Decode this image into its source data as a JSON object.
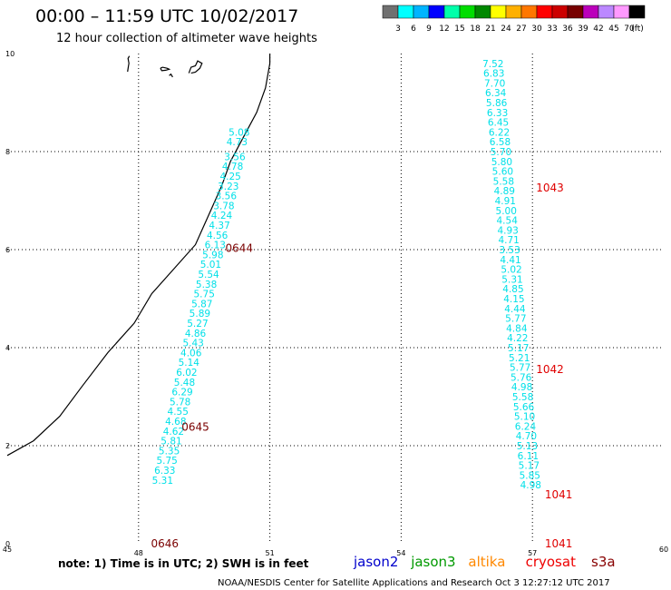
{
  "header": {
    "title": "00:00 – 11:59 UTC 10/02/2017",
    "subtitle": "12 hour collection of altimeter wave heights"
  },
  "colorbar": {
    "colors": [
      "#707070",
      "#00ffff",
      "#00b4ff",
      "#0000ff",
      "#00ffaa",
      "#00dd00",
      "#008800",
      "#ffff00",
      "#ffb000",
      "#ff7700",
      "#ff0000",
      "#cc0000",
      "#770000",
      "#bb00bb",
      "#bb88ff",
      "#ff99ff",
      "#000000"
    ],
    "labels": [
      "3",
      "6",
      "9",
      "12",
      "15",
      "18",
      "21",
      "24",
      "27",
      "30",
      "33",
      "36",
      "39",
      "42",
      "45",
      "70",
      "(ft)"
    ]
  },
  "chart_data": {
    "type": "scatter",
    "x_ticks": [
      "45",
      "48",
      "51",
      "54",
      "57",
      "60"
    ],
    "y_ticks": [
      "0",
      "2",
      "4",
      "6",
      "8",
      "10"
    ],
    "xlim": [
      45,
      60
    ],
    "ylim": [
      0,
      10
    ],
    "grid": true,
    "tracks": [
      {
        "name": "western track",
        "points": [
          {
            "x": 50.3,
            "y": 8.4,
            "v": "5.08"
          },
          {
            "x": 50.25,
            "y": 8.2,
            "v": "4.73"
          },
          {
            "x": 50.2,
            "y": 7.9,
            "v": "3.56"
          },
          {
            "x": 50.15,
            "y": 7.7,
            "v": "4.78"
          },
          {
            "x": 50.1,
            "y": 7.5,
            "v": "4.25"
          },
          {
            "x": 50.05,
            "y": 7.3,
            "v": "3.23"
          },
          {
            "x": 50.0,
            "y": 7.1,
            "v": "3.56"
          },
          {
            "x": 49.95,
            "y": 6.9,
            "v": "3.78"
          },
          {
            "x": 49.9,
            "y": 6.7,
            "v": "4.24"
          },
          {
            "x": 49.85,
            "y": 6.5,
            "v": "4.37"
          },
          {
            "x": 49.8,
            "y": 6.3,
            "v": "4.56"
          },
          {
            "x": 49.75,
            "y": 6.1,
            "v": "6.13"
          },
          {
            "x": 49.7,
            "y": 5.9,
            "v": "5.98"
          },
          {
            "x": 49.65,
            "y": 5.7,
            "v": "5.01"
          },
          {
            "x": 49.6,
            "y": 5.5,
            "v": "5.54"
          },
          {
            "x": 49.55,
            "y": 5.3,
            "v": "5.38"
          },
          {
            "x": 49.5,
            "y": 5.1,
            "v": "5.75"
          },
          {
            "x": 49.45,
            "y": 4.9,
            "v": "5.87"
          },
          {
            "x": 49.4,
            "y": 4.7,
            "v": "5.89"
          },
          {
            "x": 49.35,
            "y": 4.5,
            "v": "5.27"
          },
          {
            "x": 49.3,
            "y": 4.3,
            "v": "4.86"
          },
          {
            "x": 49.25,
            "y": 4.1,
            "v": "5.43"
          },
          {
            "x": 49.2,
            "y": 3.9,
            "v": "4.06"
          },
          {
            "x": 49.15,
            "y": 3.7,
            "v": "5.14"
          },
          {
            "x": 49.1,
            "y": 3.5,
            "v": "6.02"
          },
          {
            "x": 49.05,
            "y": 3.3,
            "v": "5.48"
          },
          {
            "x": 49.0,
            "y": 3.1,
            "v": "6.29"
          },
          {
            "x": 48.95,
            "y": 2.9,
            "v": "5.78"
          },
          {
            "x": 48.9,
            "y": 2.7,
            "v": "4.55"
          },
          {
            "x": 48.85,
            "y": 2.5,
            "v": "4.68"
          },
          {
            "x": 48.8,
            "y": 2.3,
            "v": "4.62"
          },
          {
            "x": 48.75,
            "y": 2.1,
            "v": "5.81"
          },
          {
            "x": 48.7,
            "y": 1.9,
            "v": "5.35"
          },
          {
            "x": 48.65,
            "y": 1.7,
            "v": "5.75"
          },
          {
            "x": 48.6,
            "y": 1.5,
            "v": "6.33"
          },
          {
            "x": 48.55,
            "y": 1.3,
            "v": "5.31"
          }
        ]
      },
      {
        "name": "eastern track",
        "points": [
          {
            "x": 56.1,
            "y": 9.8,
            "v": "7.52"
          },
          {
            "x": 56.12,
            "y": 9.6,
            "v": "6.83"
          },
          {
            "x": 56.14,
            "y": 9.4,
            "v": "7.70"
          },
          {
            "x": 56.16,
            "y": 9.2,
            "v": "6.34"
          },
          {
            "x": 56.18,
            "y": 9.0,
            "v": "5.86"
          },
          {
            "x": 56.2,
            "y": 8.8,
            "v": "6.33"
          },
          {
            "x": 56.22,
            "y": 8.6,
            "v": "6.45"
          },
          {
            "x": 56.24,
            "y": 8.4,
            "v": "6.22"
          },
          {
            "x": 56.26,
            "y": 8.2,
            "v": "6.58"
          },
          {
            "x": 56.28,
            "y": 8.0,
            "v": "5.70"
          },
          {
            "x": 56.3,
            "y": 7.8,
            "v": "5.80"
          },
          {
            "x": 56.32,
            "y": 7.6,
            "v": "5.60"
          },
          {
            "x": 56.34,
            "y": 7.4,
            "v": "5.58"
          },
          {
            "x": 56.36,
            "y": 7.2,
            "v": "4.89"
          },
          {
            "x": 56.38,
            "y": 7.0,
            "v": "4.91"
          },
          {
            "x": 56.4,
            "y": 6.8,
            "v": "5.00"
          },
          {
            "x": 56.42,
            "y": 6.6,
            "v": "4.54"
          },
          {
            "x": 56.44,
            "y": 6.4,
            "v": "4.93"
          },
          {
            "x": 56.46,
            "y": 6.2,
            "v": "4.71"
          },
          {
            "x": 56.48,
            "y": 6.0,
            "v": "3.53"
          },
          {
            "x": 56.5,
            "y": 5.8,
            "v": "4.41"
          },
          {
            "x": 56.52,
            "y": 5.6,
            "v": "5.02"
          },
          {
            "x": 56.54,
            "y": 5.4,
            "v": "5.31"
          },
          {
            "x": 56.56,
            "y": 5.2,
            "v": "4.85"
          },
          {
            "x": 56.58,
            "y": 5.0,
            "v": "4.15"
          },
          {
            "x": 56.6,
            "y": 4.8,
            "v": "4.44"
          },
          {
            "x": 56.62,
            "y": 4.6,
            "v": "5.77"
          },
          {
            "x": 56.64,
            "y": 4.4,
            "v": "4.84"
          },
          {
            "x": 56.66,
            "y": 4.2,
            "v": "4.22"
          },
          {
            "x": 56.68,
            "y": 4.0,
            "v": "5.17"
          },
          {
            "x": 56.7,
            "y": 3.8,
            "v": "5.21"
          },
          {
            "x": 56.72,
            "y": 3.6,
            "v": "5.77"
          },
          {
            "x": 56.74,
            "y": 3.4,
            "v": "5.76"
          },
          {
            "x": 56.76,
            "y": 3.2,
            "v": "4.98"
          },
          {
            "x": 56.78,
            "y": 3.0,
            "v": "5.58"
          },
          {
            "x": 56.8,
            "y": 2.8,
            "v": "5.66"
          },
          {
            "x": 56.82,
            "y": 2.6,
            "v": "5.10"
          },
          {
            "x": 56.84,
            "y": 2.4,
            "v": "6.24"
          },
          {
            "x": 56.86,
            "y": 2.2,
            "v": "4.70"
          },
          {
            "x": 56.88,
            "y": 2.0,
            "v": "5.13"
          },
          {
            "x": 56.9,
            "y": 1.8,
            "v": "6.11"
          },
          {
            "x": 56.92,
            "y": 1.6,
            "v": "5.17"
          },
          {
            "x": 56.94,
            "y": 1.4,
            "v": "5.85"
          },
          {
            "x": 56.96,
            "y": 1.2,
            "v": "4.98"
          }
        ]
      }
    ],
    "pass_labels": [
      {
        "x": 50.3,
        "y": 6.03,
        "text": "0644",
        "color": "#7a0000"
      },
      {
        "x": 49.3,
        "y": 2.38,
        "text": "0645",
        "color": "#7a0000"
      },
      {
        "x": 48.6,
        "y": 0.0,
        "text": "0646",
        "color": "#7a0000"
      },
      {
        "x": 57.4,
        "y": 7.26,
        "text": "1043",
        "color": "#e00000"
      },
      {
        "x": 57.4,
        "y": 3.56,
        "text": "1042",
        "color": "#e00000"
      },
      {
        "x": 57.6,
        "y": 1.0,
        "text": "1041",
        "color": "#e00000"
      },
      {
        "x": 57.6,
        "y": 0.0,
        "text": "1041",
        "color": "#e00000"
      }
    ],
    "coastline": [
      [
        45.0,
        1.8
      ],
      [
        45.6,
        2.1
      ],
      [
        46.2,
        2.6
      ],
      [
        46.7,
        3.2
      ],
      [
        47.3,
        3.9
      ],
      [
        47.9,
        4.5
      ],
      [
        48.3,
        5.1
      ],
      [
        48.8,
        5.6
      ],
      [
        49.3,
        6.1
      ],
      [
        49.6,
        6.7
      ],
      [
        49.9,
        7.3
      ],
      [
        50.1,
        7.8
      ],
      [
        50.4,
        8.3
      ],
      [
        50.7,
        8.8
      ],
      [
        50.9,
        9.3
      ],
      [
        51.0,
        9.8
      ],
      [
        51.0,
        10.0
      ]
    ],
    "islands": [
      [
        [
          47.75,
          9.63
        ],
        [
          47.77,
          9.75
        ],
        [
          47.78,
          9.8
        ],
        [
          47.76,
          9.9
        ],
        [
          47.79,
          9.95
        ]
      ],
      [
        [
          48.5,
          9.7
        ],
        [
          48.55,
          9.72
        ],
        [
          48.65,
          9.7
        ],
        [
          48.7,
          9.68
        ],
        [
          48.62,
          9.66
        ],
        [
          48.53,
          9.65
        ],
        [
          48.5,
          9.7
        ]
      ],
      [
        [
          49.15,
          9.6
        ],
        [
          49.2,
          9.72
        ],
        [
          49.3,
          9.75
        ],
        [
          49.35,
          9.85
        ],
        [
          49.45,
          9.8
        ],
        [
          49.4,
          9.7
        ],
        [
          49.3,
          9.62
        ],
        [
          49.2,
          9.6
        ]
      ],
      [
        [
          48.7,
          9.55
        ],
        [
          48.74,
          9.58
        ],
        [
          48.78,
          9.52
        ]
      ]
    ]
  },
  "footer": {
    "note": "note: 1) Time is in UTC; 2) SWH is in feet",
    "legend": [
      {
        "name": "jason2",
        "color": "#0000cc"
      },
      {
        "name": "jason3",
        "color": "#009900"
      },
      {
        "name": "altika",
        "color": "#ff8800"
      },
      {
        "name": "cryosat",
        "color": "#ee0000"
      },
      {
        "name": "s3a",
        "color": "#880000"
      }
    ],
    "credit": "NOAA/NESDIS Center for Satellite Applications and Research   Oct  3 12:27:12 UTC 2017"
  }
}
